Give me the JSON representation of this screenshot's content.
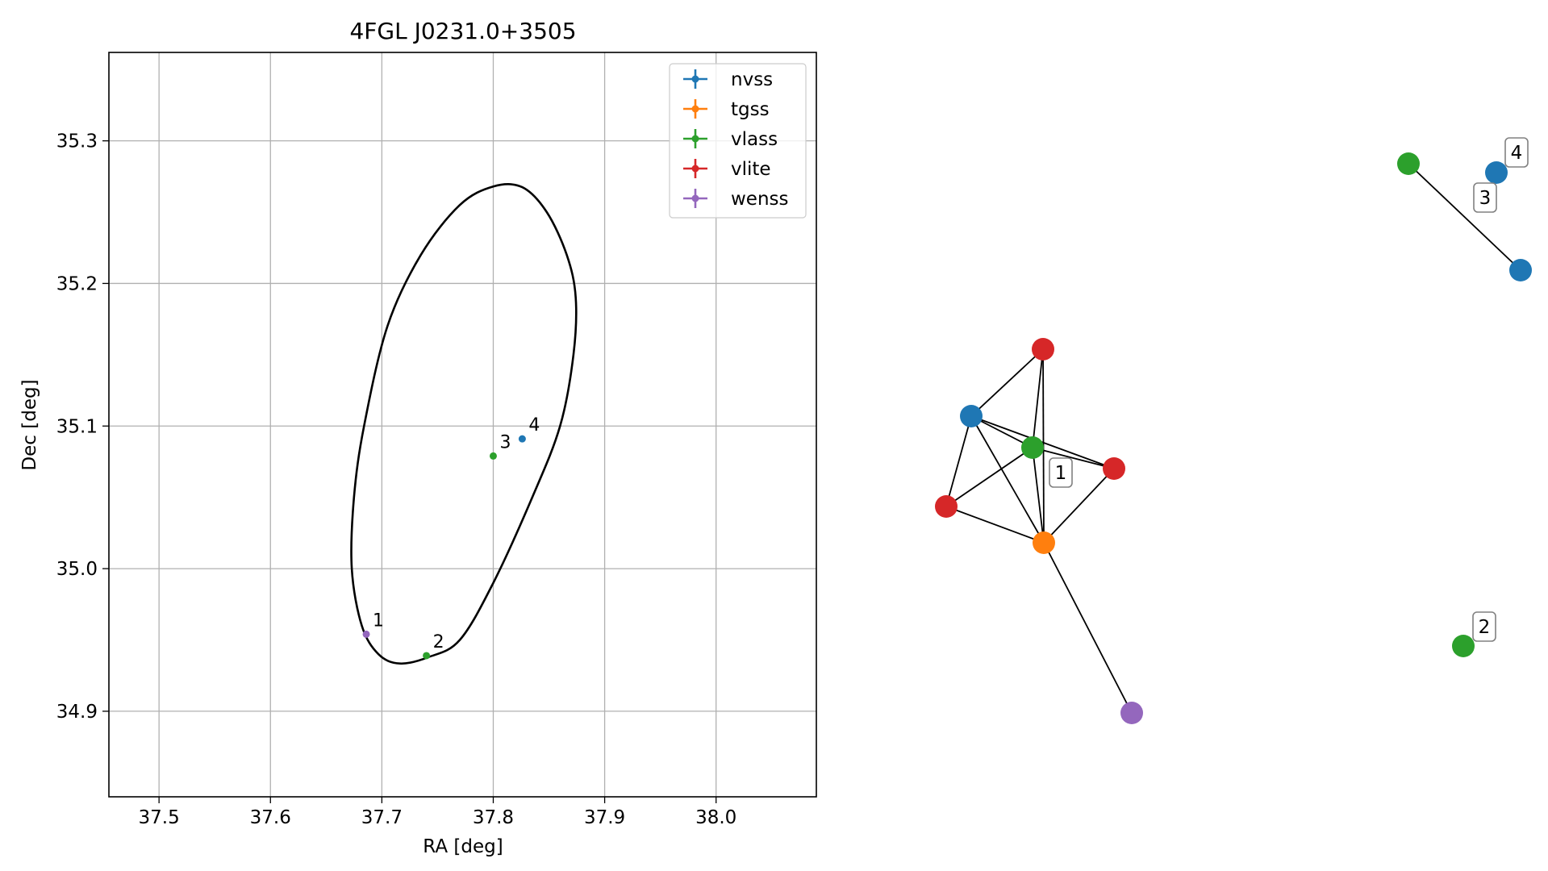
{
  "chart_data": [
    {
      "type": "scatter",
      "title": "4FGL J0231.0+3505",
      "xlabel": "RA [deg]",
      "ylabel": "Dec [deg]",
      "xlim": [
        37.455,
        38.09
      ],
      "ylim": [
        34.84,
        35.362
      ],
      "xticks": [
        "37.5",
        "37.6",
        "37.7",
        "37.8",
        "37.9",
        "38.0"
      ],
      "yticks": [
        "34.9",
        "35.0",
        "35.1",
        "35.2",
        "35.3"
      ],
      "grid": true,
      "legend_position": "top-right",
      "legend": [
        {
          "label": "nvss",
          "color": "#1f77b4"
        },
        {
          "label": "tgss",
          "color": "#ff7f0e"
        },
        {
          "label": "vlass",
          "color": "#2ca02c"
        },
        {
          "label": "vlite",
          "color": "#d62728"
        },
        {
          "label": "wenss",
          "color": "#9467bd"
        }
      ],
      "ellipse": {
        "center": [
          37.7815,
          35.0995
        ],
        "points": [
          [
            37.826,
            35.2675
          ],
          [
            37.848,
            35.25
          ],
          [
            37.866,
            35.22
          ],
          [
            37.874,
            35.19
          ],
          [
            37.872,
            35.15
          ],
          [
            37.86,
            35.1
          ],
          [
            37.835,
            35.05
          ],
          [
            37.8,
            34.99
          ],
          [
            37.77,
            34.95
          ],
          [
            37.742,
            34.938
          ],
          [
            37.716,
            34.9335
          ],
          [
            37.697,
            34.94
          ],
          [
            37.682,
            34.96
          ],
          [
            37.673,
            35.0
          ],
          [
            37.675,
            35.05
          ],
          [
            37.684,
            35.1
          ],
          [
            37.705,
            35.17
          ],
          [
            37.735,
            35.22
          ],
          [
            37.77,
            35.255
          ],
          [
            37.8,
            35.268
          ]
        ]
      },
      "points": [
        {
          "label": "1",
          "catalog": "wenss",
          "color": "#9467bd",
          "x": 37.686,
          "y": 34.954
        },
        {
          "label": "2",
          "catalog": "vlass",
          "color": "#2ca02c",
          "x": 37.74,
          "y": 34.939
        },
        {
          "label": "3",
          "catalog": "vlass",
          "color": "#2ca02c",
          "x": 37.8,
          "y": 35.079
        },
        {
          "label": "4",
          "catalog": "nvss",
          "color": "#1f77b4",
          "x": 37.826,
          "y": 35.091
        }
      ]
    },
    {
      "type": "network",
      "groups": [
        {
          "label": "1",
          "nodes": [
            {
              "id": "a",
              "catalog": "nvss",
              "color": "#1f77b4"
            },
            {
              "id": "b",
              "catalog": "vlite",
              "color": "#d62728"
            },
            {
              "id": "c",
              "catalog": "vlass",
              "color": "#2ca02c"
            },
            {
              "id": "d",
              "catalog": "vlite",
              "color": "#d62728"
            },
            {
              "id": "e",
              "catalog": "vlite",
              "color": "#d62728"
            },
            {
              "id": "f",
              "catalog": "tgss",
              "color": "#ff7f0e"
            },
            {
              "id": "g",
              "catalog": "wenss",
              "color": "#9467bd"
            }
          ],
          "edges": [
            [
              "a",
              "b"
            ],
            [
              "a",
              "c"
            ],
            [
              "a",
              "d"
            ],
            [
              "a",
              "e"
            ],
            [
              "a",
              "f"
            ],
            [
              "b",
              "c"
            ],
            [
              "b",
              "f"
            ],
            [
              "c",
              "e"
            ],
            [
              "c",
              "d"
            ],
            [
              "c",
              "f"
            ],
            [
              "d",
              "f"
            ],
            [
              "e",
              "f"
            ],
            [
              "f",
              "g"
            ]
          ]
        },
        {
          "label": "2",
          "nodes": [
            {
              "id": "h",
              "catalog": "vlass",
              "color": "#2ca02c"
            }
          ],
          "edges": []
        },
        {
          "label": "3",
          "nodes": [
            {
              "id": "i",
              "catalog": "vlass",
              "color": "#2ca02c"
            },
            {
              "id": "j",
              "catalog": "nvss",
              "color": "#1f77b4"
            }
          ],
          "edges": [
            [
              "i",
              "j"
            ]
          ]
        },
        {
          "label": "4",
          "nodes": [
            {
              "id": "k",
              "catalog": "nvss",
              "color": "#1f77b4"
            }
          ],
          "edges": []
        }
      ]
    }
  ]
}
